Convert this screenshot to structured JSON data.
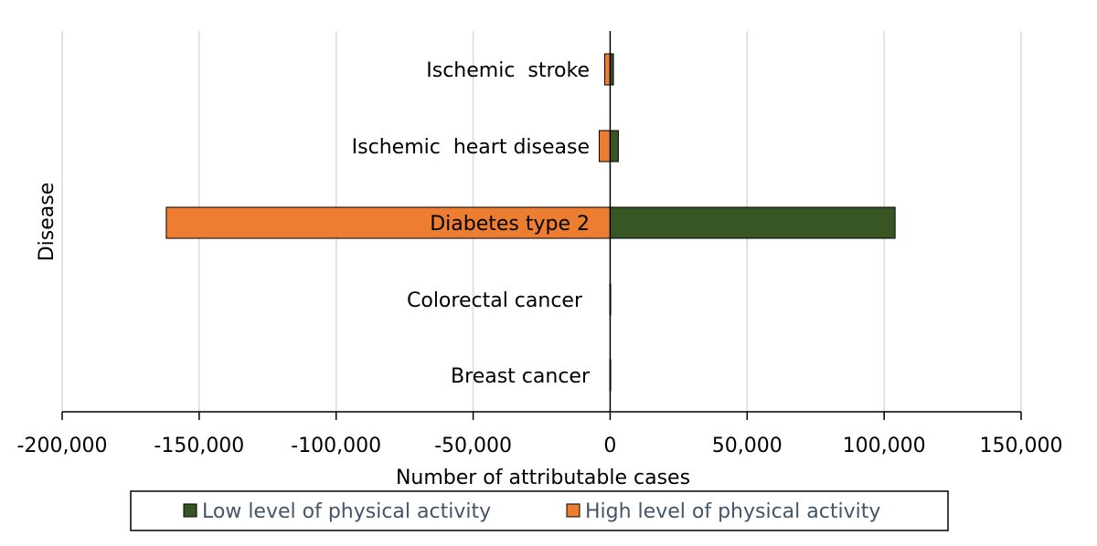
{
  "chart_data": {
    "type": "bar",
    "orientation": "horizontal",
    "title": "",
    "xlabel": "Number of attributable cases",
    "ylabel": "Disease",
    "xlim": [
      -200000,
      150000
    ],
    "xticks": [
      -200000,
      -150000,
      -100000,
      -50000,
      0,
      50000,
      100000,
      150000
    ],
    "xtick_labels": [
      "-200,000",
      "-150,000",
      "-100,000",
      "-50,000",
      "0",
      "50,000",
      "100,000",
      "150,000"
    ],
    "grid": true,
    "legend_position": "bottom",
    "categories": [
      "Ischemic  stroke",
      "Ischemic  heart disease",
      "Diabetes type 2",
      "Colorectal cancer",
      "Breast cancer"
    ],
    "series": [
      {
        "name": "Low level of physical activity",
        "color": "#375623",
        "values": [
          1200,
          3000,
          104000,
          200,
          100
        ]
      },
      {
        "name": "High level of physical activity",
        "color": "#ed7d31",
        "values": [
          -2000,
          -4000,
          -162000,
          -100,
          -100
        ]
      }
    ]
  }
}
